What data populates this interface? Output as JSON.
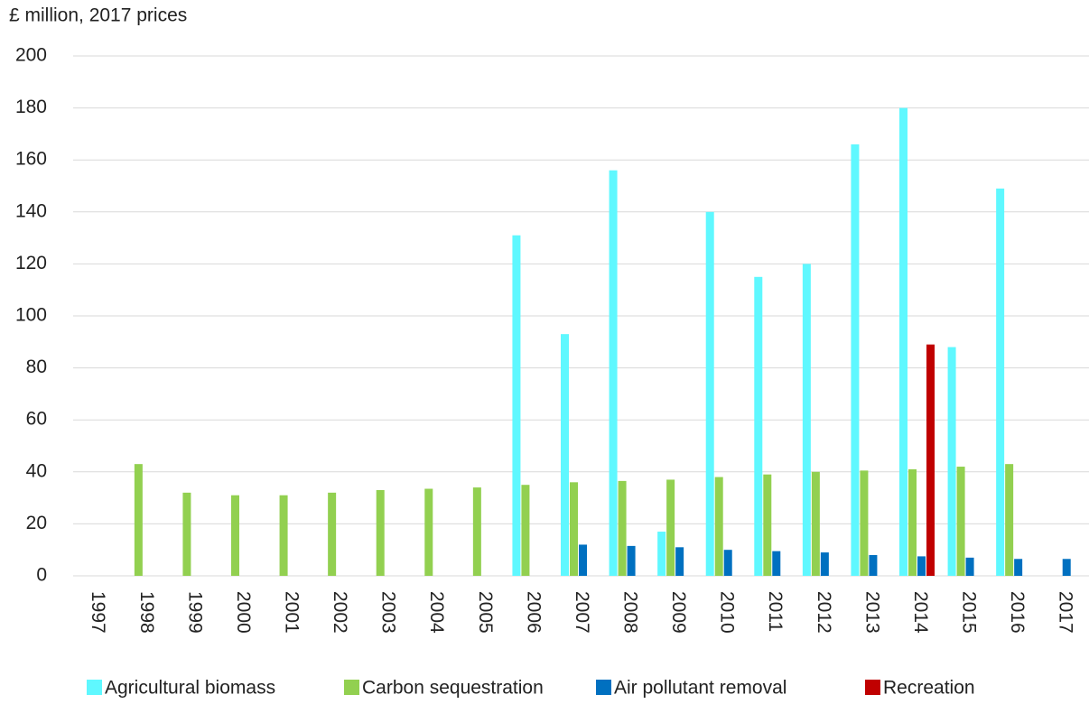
{
  "chart_data": {
    "type": "bar",
    "y_axis_label": "£ million, 2017 prices",
    "categories": [
      "1997",
      "1998",
      "1999",
      "2000",
      "2001",
      "2002",
      "2003",
      "2004",
      "2005",
      "2006",
      "2007",
      "2008",
      "2009",
      "2010",
      "2011",
      "2012",
      "2013",
      "2014",
      "2015",
      "2016",
      "2017"
    ],
    "series": [
      {
        "name": "Agricultural biomass",
        "color": "#5ff8ff",
        "values": [
          null,
          null,
          null,
          null,
          null,
          null,
          null,
          null,
          null,
          131,
          93,
          156,
          17,
          140,
          115,
          120,
          166,
          180,
          88,
          149,
          null
        ]
      },
      {
        "name": "Carbon sequestration",
        "color": "#92d050",
        "values": [
          null,
          43,
          32,
          31,
          31,
          32,
          33,
          33.5,
          34,
          35,
          36,
          36.5,
          37,
          38,
          39,
          40,
          40.5,
          41,
          42,
          43,
          null
        ]
      },
      {
        "name": "Air pollutant removal",
        "color": "#0070c0",
        "values": [
          null,
          null,
          null,
          null,
          null,
          null,
          null,
          null,
          null,
          null,
          12,
          11.5,
          11,
          10,
          9.5,
          9,
          8,
          7.5,
          7,
          6.5,
          6.5
        ]
      },
      {
        "name": "Recreation",
        "color": "#c00000",
        "values": [
          null,
          null,
          null,
          null,
          null,
          null,
          null,
          null,
          null,
          null,
          null,
          null,
          null,
          null,
          null,
          null,
          null,
          89,
          null,
          null,
          null
        ]
      }
    ],
    "ylim": [
      0,
      200
    ],
    "yticks": [
      0,
      20,
      40,
      60,
      80,
      100,
      120,
      140,
      160,
      180,
      200
    ],
    "grid": true,
    "legend": "bottom"
  }
}
